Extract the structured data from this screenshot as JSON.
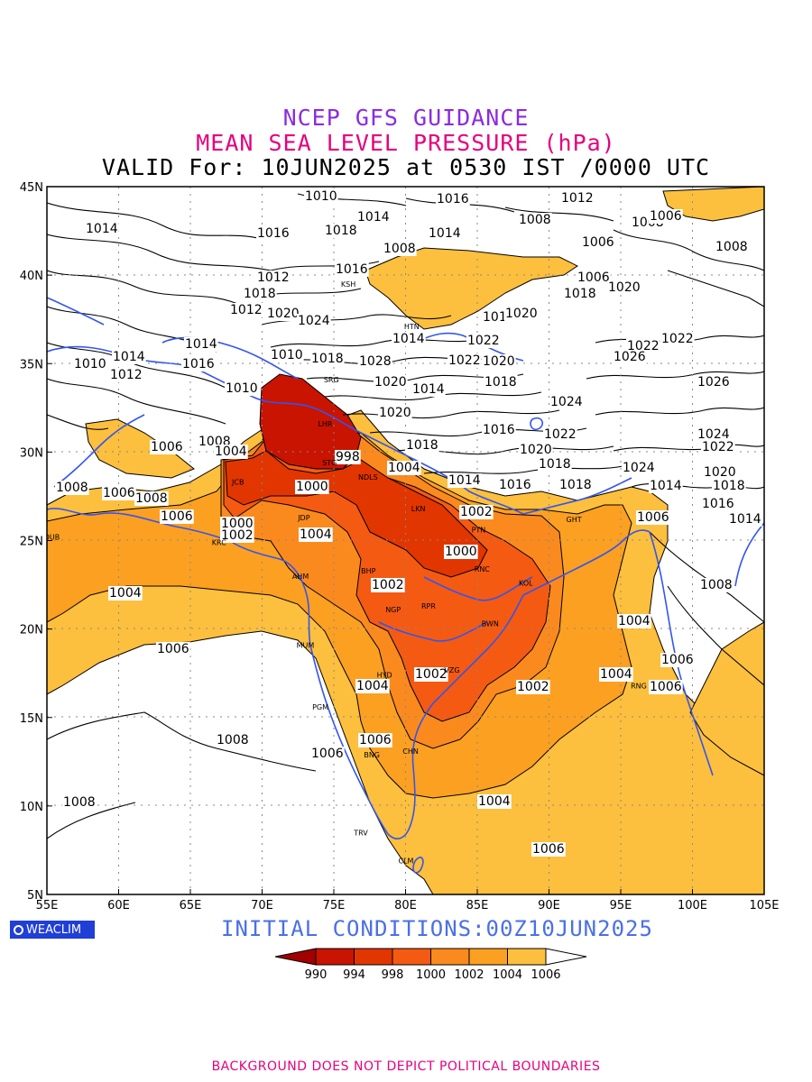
{
  "titles": {
    "line1": "NCEP GFS GUIDANCE",
    "line2": "MEAN SEA LEVEL PRESSURE (hPa)",
    "line3": "VALID For: 10JUN2025 at 0530 IST /0000 UTC"
  },
  "initial_conditions": "INITIAL  CONDITIONS:00Z10JUN2025",
  "disclaimer": "BACKGROUND DOES NOT DEPICT POLITICAL BOUNDARIES",
  "logo": "WEACLIM",
  "axes": {
    "lon_labels": [
      "55E",
      "60E",
      "65E",
      "70E",
      "75E",
      "80E",
      "85E",
      "90E",
      "95E",
      "100E",
      "105E"
    ],
    "lat_labels": [
      "45N",
      "40N",
      "35N",
      "30N",
      "25N",
      "20N",
      "15N",
      "10N",
      "5N"
    ]
  },
  "legend": {
    "values": [
      "990",
      "994",
      "998",
      "1000",
      "1002",
      "1004",
      "1006"
    ],
    "colors": [
      "#a30000",
      "#c81400",
      "#e23600",
      "#f45a12",
      "#fb8a1e",
      "#fca022",
      "#fdbf3e"
    ]
  },
  "fill_colors": {
    "lt1006": "#fdbf3e",
    "lt1004": "#fca022",
    "lt1002": "#fb8a1e",
    "lt1000": "#f45a12",
    "lt998": "#e23600",
    "lt994": "#c81400",
    "coast": "#3355ee"
  },
  "contour_labels": [
    "1014",
    "1010",
    "1016",
    "1012",
    "1008",
    "1006",
    "1018",
    "1020",
    "1022",
    "1024",
    "1026",
    "1028",
    "1004",
    "1002",
    "1000",
    "998"
  ],
  "place_labels": [
    {
      "name": "KSH",
      "lon": 76.0,
      "lat": 39.5
    },
    {
      "name": "HTN",
      "lon": 80.4,
      "lat": 37.1
    },
    {
      "name": "SRG",
      "lon": 74.8,
      "lat": 34.1
    },
    {
      "name": "LHR",
      "lon": 74.4,
      "lat": 31.6
    },
    {
      "name": "STG",
      "lon": 74.7,
      "lat": 29.4
    },
    {
      "name": "NDLS",
      "lon": 77.2,
      "lat": 28.6
    },
    {
      "name": "JCB",
      "lon": 68.4,
      "lat": 28.3
    },
    {
      "name": "JDP",
      "lon": 73.0,
      "lat": 26.3
    },
    {
      "name": "LKN",
      "lon": 80.9,
      "lat": 26.8
    },
    {
      "name": "PTN",
      "lon": 85.1,
      "lat": 25.6
    },
    {
      "name": "KRC",
      "lon": 67.0,
      "lat": 24.9
    },
    {
      "name": "DUB",
      "lon": 55.3,
      "lat": 25.2
    },
    {
      "name": "AHM",
      "lon": 72.6,
      "lat": 23.0
    },
    {
      "name": "BHP",
      "lon": 77.4,
      "lat": 23.3
    },
    {
      "name": "RNC",
      "lon": 85.3,
      "lat": 23.4
    },
    {
      "name": "KOL",
      "lon": 88.4,
      "lat": 22.6
    },
    {
      "name": "NGP",
      "lon": 79.1,
      "lat": 21.1
    },
    {
      "name": "RPR",
      "lon": 81.6,
      "lat": 21.3
    },
    {
      "name": "BWN",
      "lon": 85.8,
      "lat": 20.3
    },
    {
      "name": "MUM",
      "lon": 72.9,
      "lat": 19.1
    },
    {
      "name": "HYD",
      "lon": 78.5,
      "lat": 17.4
    },
    {
      "name": "VZG",
      "lon": 83.2,
      "lat": 17.7
    },
    {
      "name": "PGM",
      "lon": 74.0,
      "lat": 15.6
    },
    {
      "name": "CHN",
      "lon": 80.3,
      "lat": 13.1
    },
    {
      "name": "BNG",
      "lon": 77.6,
      "lat": 12.9
    },
    {
      "name": "TRV",
      "lon": 76.9,
      "lat": 8.5
    },
    {
      "name": "CLM",
      "lon": 80.0,
      "lat": 6.9
    },
    {
      "name": "GHT",
      "lon": 91.7,
      "lat": 26.2
    },
    {
      "name": "RNG",
      "lon": 96.2,
      "lat": 16.8
    }
  ]
}
